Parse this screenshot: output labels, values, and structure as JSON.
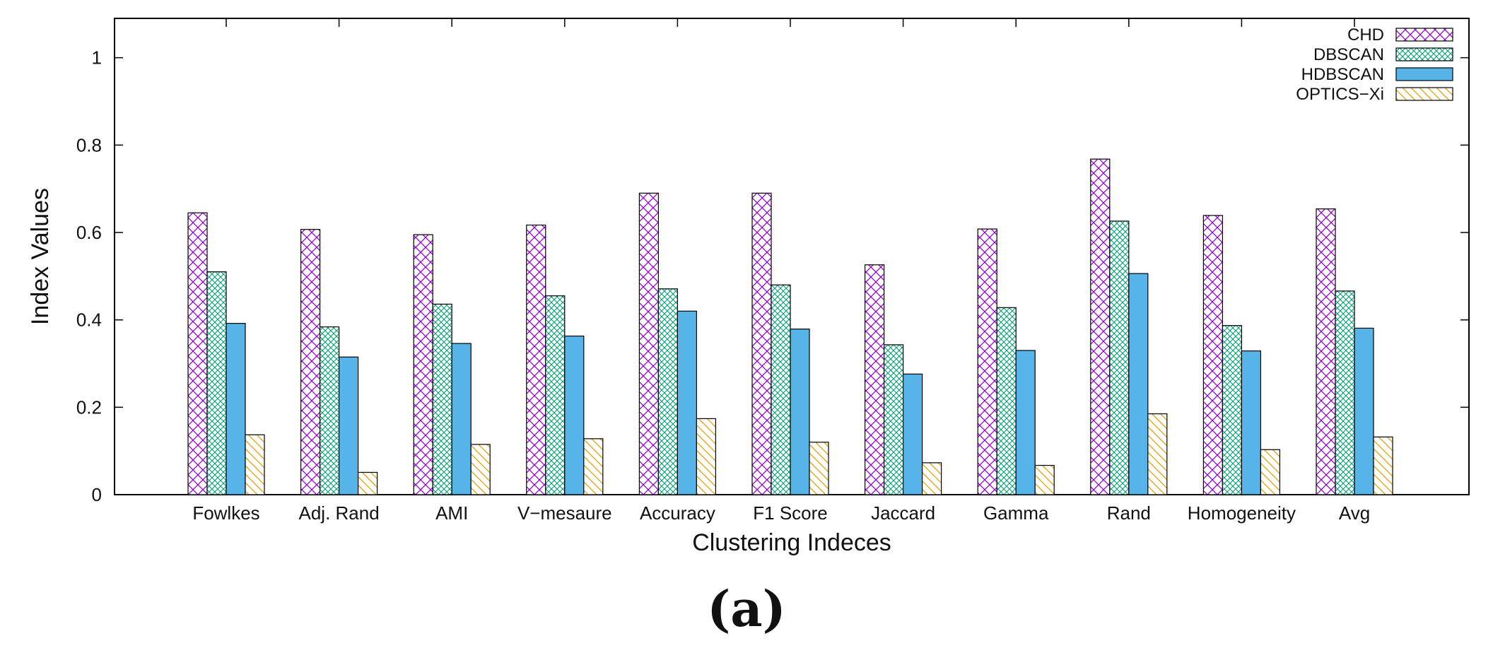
{
  "chart_data": {
    "type": "bar",
    "title": "",
    "xlabel": "Clustering Indeces",
    "ylabel": "Index Values",
    "ylim": [
      0,
      1.09
    ],
    "yticks": [
      0,
      0.2,
      0.4,
      0.6,
      0.8,
      1
    ],
    "ytick_labels": [
      "0",
      "0.2",
      "0.4",
      "0.6",
      "0.8",
      "1"
    ],
    "grid": false,
    "legend_position": "top-right",
    "categories": [
      "Fowlkes",
      "Adj. Rand",
      "AMI",
      "V−mesaure",
      "Accuracy",
      "F1 Score",
      "Jaccard",
      "Gamma",
      "Rand",
      "Homogeneity",
      "Avg"
    ],
    "series": [
      {
        "name": "CHD",
        "pattern": "crosshatch",
        "color": "#9400d3",
        "values": [
          0.645,
          0.607,
          0.595,
          0.617,
          0.69,
          0.69,
          0.526,
          0.608,
          0.768,
          0.639,
          0.654
        ]
      },
      {
        "name": "DBSCAN",
        "pattern": "dense-crosshatch",
        "color": "#009e73",
        "values": [
          0.51,
          0.384,
          0.436,
          0.455,
          0.471,
          0.48,
          0.343,
          0.428,
          0.626,
          0.387,
          0.466
        ]
      },
      {
        "name": "HDBSCAN",
        "pattern": "solid",
        "color": "#56b4e9",
        "values": [
          0.392,
          0.315,
          0.346,
          0.363,
          0.42,
          0.379,
          0.276,
          0.33,
          0.506,
          0.329,
          0.381
        ]
      },
      {
        "name": "OPTICS−Xi",
        "pattern": "diagonal",
        "color": "#e69f00",
        "values": [
          0.137,
          0.051,
          0.115,
          0.128,
          0.174,
          0.12,
          0.073,
          0.067,
          0.185,
          0.103,
          0.132
        ]
      }
    ]
  },
  "caption": "(a)"
}
